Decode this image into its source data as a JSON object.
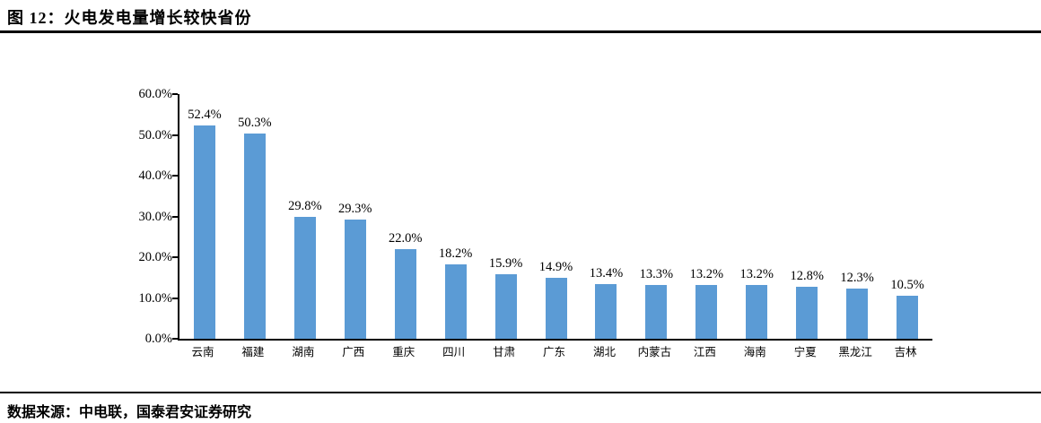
{
  "title": "图 12：火电发电量增长较快省份",
  "footer": "数据来源：中电联，国泰君安证券研究",
  "colors": {
    "bar": "#5B9BD5",
    "axis": "#000000",
    "rule": "#000000",
    "text": "#000000"
  },
  "chart_data": {
    "type": "bar",
    "title": "",
    "xlabel": "",
    "ylabel": "",
    "categories": [
      "云南",
      "福建",
      "湖南",
      "广西",
      "重庆",
      "四川",
      "甘肃",
      "广东",
      "湖北",
      "内蒙古",
      "江西",
      "海南",
      "宁夏",
      "黑龙江",
      "吉林"
    ],
    "values": [
      52.4,
      50.3,
      29.8,
      29.3,
      22.0,
      18.2,
      15.9,
      14.9,
      13.4,
      13.3,
      13.2,
      13.2,
      12.8,
      12.3,
      10.5
    ],
    "data_labels": [
      "52.4%",
      "50.3%",
      "29.8%",
      "29.3%",
      "22.0%",
      "18.2%",
      "15.9%",
      "14.9%",
      "13.4%",
      "13.3%",
      "13.2%",
      "13.2%",
      "12.8%",
      "12.3%",
      "10.5%"
    ],
    "y_ticks": [
      "0.0%",
      "10.0%",
      "20.0%",
      "30.0%",
      "40.0%",
      "50.0%",
      "60.0%"
    ],
    "ylim": [
      0,
      60
    ],
    "grid": false,
    "legend": null,
    "bar_color": "#5B9BD5"
  }
}
